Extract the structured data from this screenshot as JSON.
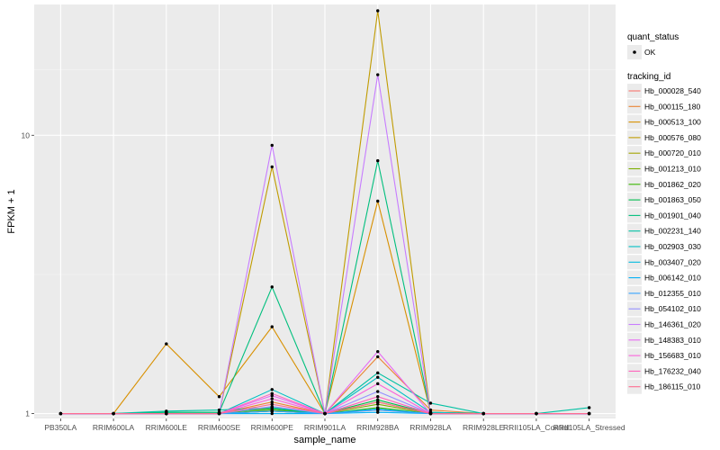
{
  "chart_data": {
    "type": "line",
    "x_label": "sample_name",
    "y_label": "FPKM + 1",
    "y_scale": "log10",
    "ylim": [
      0.96,
      29.5
    ],
    "y_ticks": [
      1,
      10
    ],
    "y_tick_labels": [
      "1",
      "10"
    ],
    "grid": true,
    "background": "#ebebeb",
    "x": [
      "PB350LA",
      "RRIM600LA",
      "RRIM600LE",
      "RRIM600SE",
      "RRIM600PE",
      "RRIM901LA",
      "RRIM928BA",
      "RRIM928LA",
      "RRIM928LE",
      "RRII105LA_Control",
      "RRII105LA_Stressed"
    ],
    "legend_position": "right",
    "point_legend": {
      "title": "quant_status",
      "label": "OK",
      "color": "#000000"
    },
    "series_legend_title": "tracking_id",
    "series": [
      {
        "name": "Hb_000028_540",
        "color": "#F8766D",
        "values": [
          1,
          1,
          1,
          1,
          1.02,
          1,
          1.03,
          1,
          1,
          1,
          1
        ]
      },
      {
        "name": "Hb_000115_180",
        "color": "#EA8331",
        "values": [
          1,
          1,
          1,
          1,
          1.1,
          1,
          1.6,
          1.03,
          1,
          1,
          1
        ]
      },
      {
        "name": "Hb_000513_100",
        "color": "#D89000",
        "values": [
          1,
          1,
          1.78,
          1.15,
          2.05,
          1,
          5.8,
          1.01,
          1,
          1,
          1
        ]
      },
      {
        "name": "Hb_000576_080",
        "color": "#C09B00",
        "values": [
          1,
          1,
          1,
          1,
          7.7,
          1,
          28,
          1,
          1,
          1,
          1
        ]
      },
      {
        "name": "Hb_000720_010",
        "color": "#A3A500",
        "values": [
          1,
          1,
          1,
          1,
          1.05,
          1,
          1.1,
          1,
          1,
          1,
          1
        ]
      },
      {
        "name": "Hb_001213_010",
        "color": "#7CAE00",
        "values": [
          1,
          1,
          1,
          1,
          1.03,
          1,
          1.08,
          1,
          1,
          1,
          1
        ]
      },
      {
        "name": "Hb_001862_020",
        "color": "#39B600",
        "values": [
          1,
          1,
          1,
          1,
          1.02,
          1,
          1.05,
          1,
          1,
          1,
          1
        ]
      },
      {
        "name": "Hb_001863_050",
        "color": "#00BB4E",
        "values": [
          1,
          1,
          1.01,
          1.01,
          1.04,
          1,
          1.12,
          1,
          1,
          1,
          1
        ]
      },
      {
        "name": "Hb_001901_040",
        "color": "#00BF7D",
        "values": [
          1,
          1,
          1.01,
          1.01,
          2.85,
          1,
          8.1,
          1.01,
          1,
          1,
          1
        ]
      },
      {
        "name": "Hb_002231_140",
        "color": "#00C1A3",
        "values": [
          1,
          1,
          1.02,
          1.03,
          1.05,
          1,
          1.4,
          1.09,
          1,
          1,
          1.05
        ]
      },
      {
        "name": "Hb_002903_030",
        "color": "#00BFC4",
        "values": [
          1,
          1,
          1,
          1,
          1.22,
          1,
          1.35,
          1.01,
          1,
          1,
          1
        ]
      },
      {
        "name": "Hb_003407_020",
        "color": "#00BAE0",
        "values": [
          1,
          1,
          1,
          1,
          1.02,
          1,
          1.04,
          1,
          1,
          1,
          1
        ]
      },
      {
        "name": "Hb_006142_010",
        "color": "#00B0F6",
        "values": [
          1,
          1,
          1,
          1,
          1,
          1,
          1.01,
          1,
          1,
          1,
          1
        ]
      },
      {
        "name": "Hb_012355_010",
        "color": "#35A2FF",
        "values": [
          1,
          1,
          1,
          1,
          1.02,
          1,
          1.03,
          1,
          1,
          1,
          1
        ]
      },
      {
        "name": "Hb_054102_010",
        "color": "#9590FF",
        "values": [
          1,
          1,
          1,
          1,
          1.06,
          1,
          1.2,
          1,
          1,
          1,
          1
        ]
      },
      {
        "name": "Hb_146361_020",
        "color": "#C77CFF",
        "values": [
          1,
          1,
          1,
          1,
          9.2,
          1,
          16.5,
          1,
          1,
          1,
          1
        ]
      },
      {
        "name": "Hb_148383_010",
        "color": "#E76BF3",
        "values": [
          1,
          1,
          1,
          1,
          1.16,
          1,
          1.67,
          1,
          1,
          1,
          1
        ]
      },
      {
        "name": "Hb_156683_010",
        "color": "#FA62DB",
        "values": [
          1,
          1,
          1,
          1,
          1.13,
          1,
          1.28,
          1,
          1,
          1,
          1
        ]
      },
      {
        "name": "Hb_176232_040",
        "color": "#FF62BC",
        "values": [
          1,
          1,
          1,
          1,
          1.18,
          1,
          1.15,
          1,
          1,
          1,
          1
        ]
      },
      {
        "name": "Hb_186115_010",
        "color": "#FF6C91",
        "values": [
          1,
          1,
          1,
          1,
          1.08,
          1,
          1.1,
          1,
          1,
          1,
          1
        ]
      }
    ]
  }
}
